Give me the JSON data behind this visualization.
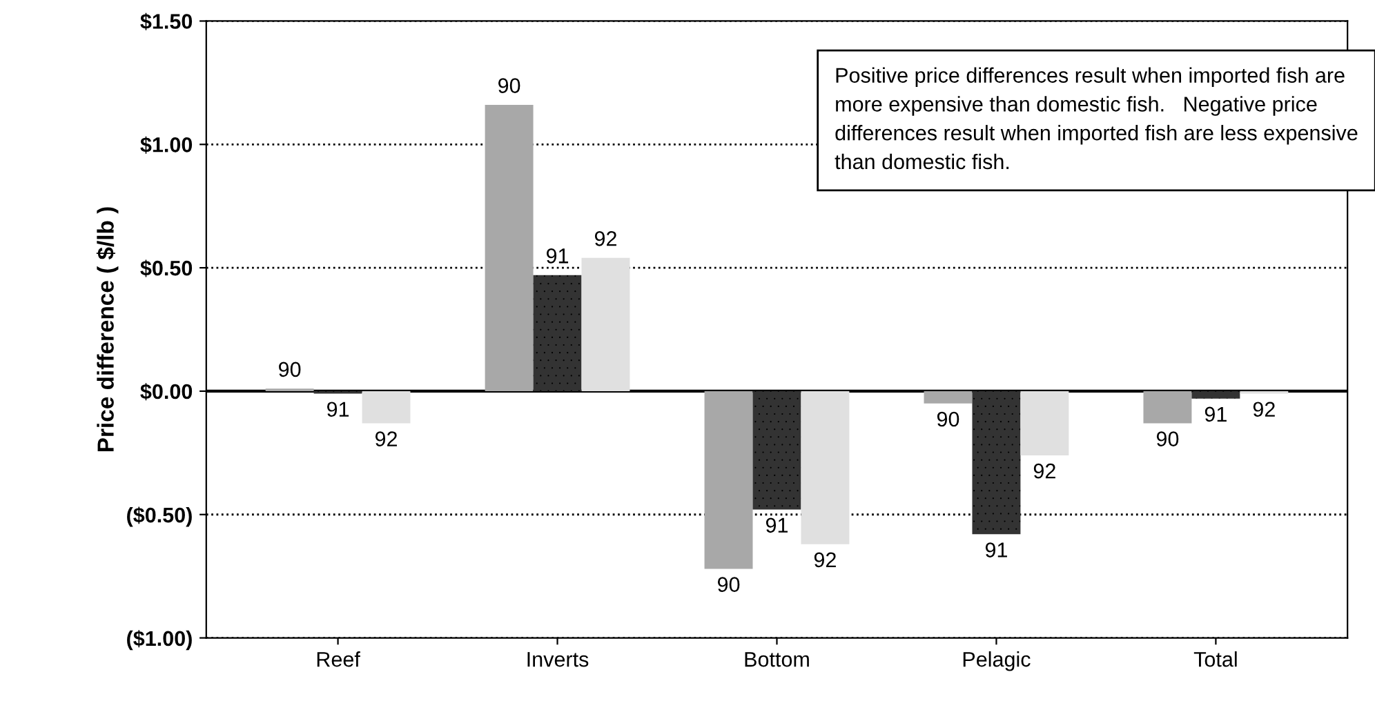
{
  "chart_data": {
    "type": "bar",
    "ylabel": "Price difference ( $/lb )",
    "categories": [
      "Reef",
      "Inverts",
      "Bottom",
      "Pelagic",
      "Total"
    ],
    "series": [
      {
        "name": "90",
        "color": "#a8a8a8",
        "values": [
          0.01,
          1.16,
          -0.72,
          -0.05,
          -0.13
        ]
      },
      {
        "name": "91",
        "color": "#333333",
        "values": [
          -0.01,
          0.47,
          -0.48,
          -0.58,
          -0.03
        ]
      },
      {
        "name": "92",
        "color": "#e0e0e0",
        "values": [
          -0.13,
          0.54,
          -0.62,
          -0.26,
          -0.01
        ]
      }
    ],
    "ylim": [
      -1.0,
      1.5
    ],
    "yticks": [
      {
        "value": 1.5,
        "label": "$1.50"
      },
      {
        "value": 1.0,
        "label": "$1.00"
      },
      {
        "value": 0.5,
        "label": "$0.50"
      },
      {
        "value": 0.0,
        "label": "$0.00"
      },
      {
        "value": -0.5,
        "label": "($0.50)"
      },
      {
        "value": -1.0,
        "label": "($1.00)"
      }
    ],
    "grid": "y",
    "ref_lines": [
      {
        "axis": "y",
        "value": 0.0,
        "color": "#000000",
        "line_style": "solid"
      }
    ],
    "annotations": [
      "Positive price differences result when imported fish are more expensive than domestic fish.   Negative price differences result when imported fish are less expensive than domestic fish."
    ]
  }
}
